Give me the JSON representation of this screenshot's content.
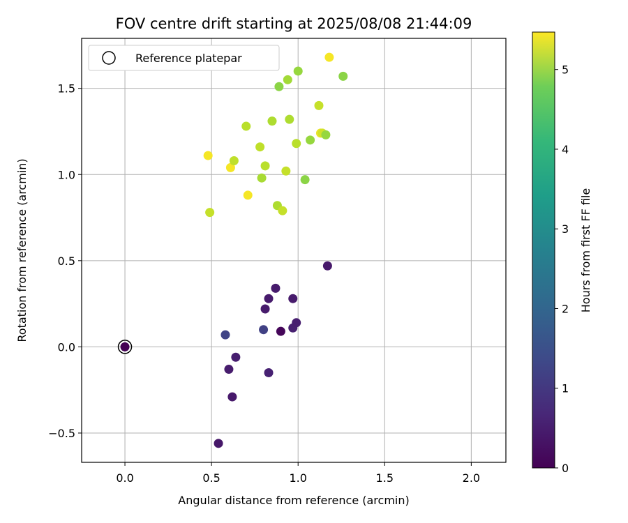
{
  "chart_data": {
    "type": "scatter",
    "title": "FOV centre drift starting at 2025/08/08 21:44:09",
    "xlabel": "Angular distance from reference (arcmin)",
    "ylabel": "Rotation from reference (arcmin)",
    "xlim": [
      -0.25,
      2.2
    ],
    "ylim": [
      -0.67,
      1.79
    ],
    "xticks": [
      0.0,
      0.5,
      1.0,
      1.5,
      2.0
    ],
    "xtick_labels": [
      "0.0",
      "0.5",
      "1.0",
      "1.5",
      "2.0"
    ],
    "yticks": [
      -0.5,
      0.0,
      0.5,
      1.0,
      1.5
    ],
    "ytick_labels": [
      "−0.5",
      "0.0",
      "0.5",
      "1.0",
      "1.5"
    ],
    "grid": true,
    "colormap": "viridis",
    "colorbar": {
      "label": "Hours from first FF file",
      "range": [
        0,
        5.47
      ],
      "ticks": [
        0,
        1,
        2,
        3,
        4,
        5
      ],
      "tick_labels": [
        "0",
        "1",
        "2",
        "3",
        "4",
        "5"
      ]
    },
    "legend": {
      "position": "upper-left",
      "entries": [
        {
          "label": "Reference platepar",
          "marker": "open-circle"
        }
      ]
    },
    "reference_point": {
      "x": 0.0,
      "y": 0.0
    },
    "points": [
      {
        "x": 0.0,
        "y": 0.0,
        "c": 0.0
      },
      {
        "x": 0.9,
        "y": 0.09,
        "c": 0.08
      },
      {
        "x": 0.54,
        "y": -0.56,
        "c": 0.35
      },
      {
        "x": 0.62,
        "y": -0.29,
        "c": 0.38
      },
      {
        "x": 0.6,
        "y": -0.13,
        "c": 0.42
      },
      {
        "x": 0.64,
        "y": -0.06,
        "c": 0.45
      },
      {
        "x": 0.83,
        "y": -0.15,
        "c": 0.5
      },
      {
        "x": 0.97,
        "y": 0.11,
        "c": 0.48
      },
      {
        "x": 0.99,
        "y": 0.14,
        "c": 0.45
      },
      {
        "x": 0.81,
        "y": 0.22,
        "c": 0.4
      },
      {
        "x": 0.83,
        "y": 0.28,
        "c": 0.4
      },
      {
        "x": 0.87,
        "y": 0.34,
        "c": 0.4
      },
      {
        "x": 0.97,
        "y": 0.28,
        "c": 0.4
      },
      {
        "x": 1.17,
        "y": 0.47,
        "c": 0.38
      },
      {
        "x": 0.58,
        "y": 0.07,
        "c": 1.1
      },
      {
        "x": 0.8,
        "y": 0.1,
        "c": 1.05
      },
      {
        "x": 0.49,
        "y": 0.78,
        "c": 5.0
      },
      {
        "x": 0.48,
        "y": 1.11,
        "c": 5.4
      },
      {
        "x": 0.61,
        "y": 1.04,
        "c": 5.4
      },
      {
        "x": 0.63,
        "y": 1.08,
        "c": 4.95
      },
      {
        "x": 0.71,
        "y": 0.88,
        "c": 5.4
      },
      {
        "x": 0.7,
        "y": 1.28,
        "c": 4.9
      },
      {
        "x": 0.78,
        "y": 1.16,
        "c": 4.95
      },
      {
        "x": 0.79,
        "y": 0.98,
        "c": 4.75
      },
      {
        "x": 0.81,
        "y": 1.05,
        "c": 4.9
      },
      {
        "x": 0.85,
        "y": 1.31,
        "c": 4.8
      },
      {
        "x": 0.88,
        "y": 0.82,
        "c": 4.8
      },
      {
        "x": 0.89,
        "y": 1.51,
        "c": 4.5
      },
      {
        "x": 0.91,
        "y": 0.79,
        "c": 5.0
      },
      {
        "x": 0.93,
        "y": 1.02,
        "c": 5.0
      },
      {
        "x": 0.94,
        "y": 1.55,
        "c": 4.7
      },
      {
        "x": 0.95,
        "y": 1.32,
        "c": 4.8
      },
      {
        "x": 0.99,
        "y": 1.18,
        "c": 4.9
      },
      {
        "x": 1.0,
        "y": 1.6,
        "c": 4.6
      },
      {
        "x": 1.04,
        "y": 0.97,
        "c": 4.5
      },
      {
        "x": 1.07,
        "y": 1.2,
        "c": 4.6
      },
      {
        "x": 1.12,
        "y": 1.4,
        "c": 5.0
      },
      {
        "x": 1.13,
        "y": 1.24,
        "c": 5.3
      },
      {
        "x": 1.14,
        "y": 1.24,
        "c": 5.1
      },
      {
        "x": 1.16,
        "y": 1.23,
        "c": 4.6
      },
      {
        "x": 1.18,
        "y": 1.68,
        "c": 5.4
      },
      {
        "x": 1.26,
        "y": 1.57,
        "c": 4.5
      }
    ]
  }
}
